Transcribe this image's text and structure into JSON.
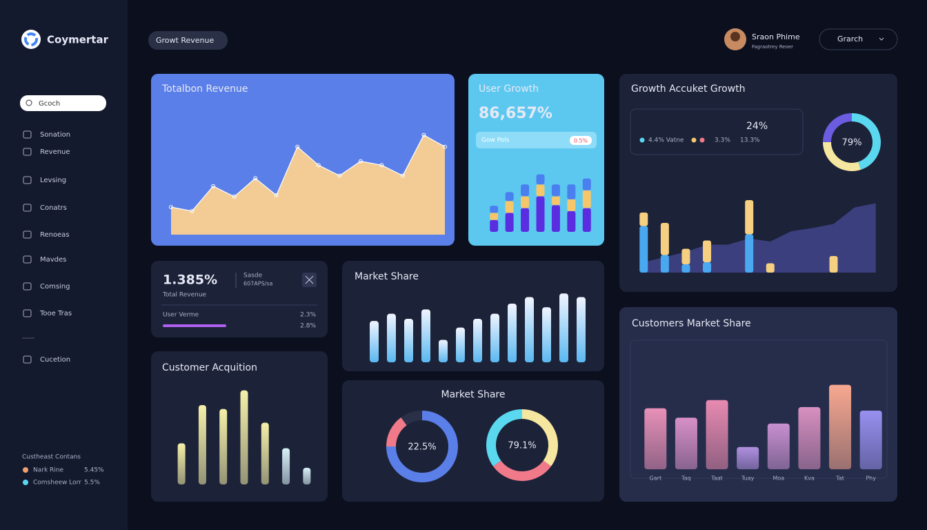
{
  "sidebar": {
    "brand": "Coymertar",
    "search": "Gcoch",
    "nav": [
      "Sonation",
      "Revenue",
      "Levsing",
      "Conatrs",
      "Renoeas",
      "Mavdes",
      "Comsing",
      "Tooe Tras",
      "Cucetion"
    ],
    "footer": {
      "title": "Custheast Contans",
      "items": [
        {
          "name": "Nark Rine",
          "value": "5.45%",
          "color": "#f0a070"
        },
        {
          "name": "Comsheew Lorr",
          "value": "5.5%",
          "color": "#5ad8f0"
        }
      ]
    }
  },
  "header": {
    "tab": "Growt Revenue",
    "user": "Sraon Phime",
    "user_subtitle": "Fagraotrey Reoer",
    "search": "Grarch"
  },
  "widgets": {
    "revenue_stat": {
      "value": "1.385%",
      "label": "Total Revenue",
      "side_title": "Sasde",
      "side_value": "607APS/sa",
      "row_label": "User Verme",
      "row_value": "2.3%",
      "bar_value": "2.8%"
    },
    "user_growth": {
      "value": "86,657%",
      "pill": "Gow Pols",
      "badge": "0.5%"
    },
    "growth_box": {
      "value": "24%",
      "items": [
        "4.4% Vatne",
        "3.3%",
        "13.3%"
      ]
    }
  },
  "chart_data": [
    {
      "type": "area",
      "title": "Totalbon Revenue",
      "values": [
        21,
        18,
        37,
        29,
        43,
        30,
        67,
        53,
        45,
        56,
        53,
        45,
        76,
        67
      ],
      "ylim": [
        0,
        100
      ],
      "color": "#f2cc94",
      "line_color": "#ffffff"
    },
    {
      "type": "stacked_bar",
      "title": "User Growth",
      "ylim": [
        0,
        100
      ],
      "series": [
        {
          "name": "A",
          "color": "#5a2de0",
          "values": [
            20,
            32,
            40,
            60,
            45,
            35,
            40
          ]
        },
        {
          "name": "B",
          "color": "#f6c66a",
          "values": [
            12,
            20,
            20,
            20,
            15,
            20,
            30
          ]
        },
        {
          "name": "C",
          "color": "#4a7ff0",
          "values": [
            12,
            15,
            20,
            17,
            20,
            25,
            20
          ]
        }
      ]
    },
    {
      "type": "bar_area",
      "title": "Growth Accuket Growth",
      "ylim": [
        0,
        100
      ],
      "series": [
        {
          "name": "Blue",
          "color": "#4aa8f0",
          "values": [
            45,
            17,
            8,
            10,
            null,
            37,
            0,
            null,
            null,
            0,
            null,
            null
          ]
        },
        {
          "name": "Yellow",
          "color": "#f6cf80",
          "values": [
            13,
            31,
            15,
            21,
            null,
            33,
            9,
            null,
            null,
            16,
            null,
            null
          ]
        }
      ],
      "area": {
        "color": "#3b3f7e",
        "values": [
          10,
          15,
          20,
          27,
          27,
          33,
          30,
          40,
          43,
          47,
          63,
          67
        ]
      },
      "donut": {
        "center_label": "79%",
        "values": [
          45,
          30,
          25
        ],
        "colors": [
          "#5ad8f0",
          "#f5e6a0",
          "#6b5ce0"
        ]
      }
    },
    {
      "type": "bar",
      "title": "Market Share",
      "ylim": [
        0,
        100
      ],
      "color": "#8fd8f5",
      "values": [
        57,
        67,
        60,
        73,
        31,
        48,
        60,
        67,
        81,
        90,
        76,
        95,
        90
      ]
    },
    {
      "type": "bar",
      "title": "Customer Acquition",
      "ylim": [
        0,
        100
      ],
      "colors": [
        "#f5f0a8",
        "#f5f0a8",
        "#f5f0a8",
        "#f5f0a8",
        "#f5f0a8",
        "#d8f0f8",
        "#d8f0f8"
      ],
      "values": [
        42,
        81,
        77,
        96,
        63,
        37,
        17
      ]
    },
    {
      "type": "donuts",
      "title": "Market Share",
      "donuts": [
        {
          "center_label": "22.5%",
          "values": [
            75,
            15,
            10
          ],
          "colors": [
            "#5b7fe8",
            "#f07a8a",
            "#2a3048"
          ]
        },
        {
          "center_label": "79.1%",
          "values": [
            35,
            30,
            35
          ],
          "colors": [
            "#f5e6a0",
            "#f07a8a",
            "#5ad8f0"
          ]
        }
      ]
    },
    {
      "type": "bar",
      "title": "Customers Market Share",
      "ylim": [
        0,
        100
      ],
      "categories": [
        "Gart",
        "Taq",
        "Taat",
        "Tuay",
        "Moa",
        "Kva",
        "Tat",
        "Phy"
      ],
      "colors": [
        "#e890b8",
        "#d890c8",
        "#e88ab0",
        "#b090e0",
        "#c890d0",
        "#d890c0",
        "#f8a890",
        "#9890f0"
      ],
      "values": [
        52,
        44,
        59,
        19,
        39,
        53,
        72,
        50
      ]
    }
  ]
}
